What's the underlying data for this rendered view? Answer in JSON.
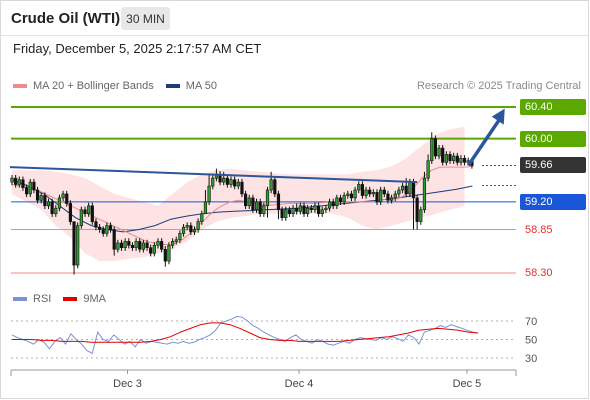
{
  "header": {
    "title": "Crude Oil (WTI)",
    "timeframe": "30 MIN",
    "datetime": "Friday, December 5, 2025 2:17:57 AM CET",
    "credit": "Research © 2025 Trading Central"
  },
  "legend": {
    "ma20": "MA 20 + Bollinger Bands",
    "ma50": "MA 50",
    "rsi": "RSI",
    "rsi_ma": "9MA"
  },
  "colors": {
    "resistance": "#5aa800",
    "support": "#1a56d8",
    "weak_support": "#f08a8a",
    "trendline": "#2b5699",
    "ma20": "#f08a8a",
    "ma50": "#1b3d7a",
    "band_fill": "#fde3e3",
    "rsi": "#7b93d6",
    "rsi_ma": "#e00000",
    "current_price": "#333333"
  },
  "chart_data": {
    "type": "candlestick",
    "price_axis": {
      "min": 58.2,
      "max": 60.5
    },
    "x_ticks": [
      {
        "label": "Dec 3",
        "index": 30
      },
      {
        "label": "Dec 4",
        "index": 77
      },
      {
        "label": "Dec 5",
        "index": 123
      }
    ],
    "levels": [
      {
        "label": "60.40",
        "value": 60.4,
        "role": "resistance"
      },
      {
        "label": "60.00",
        "value": 60.0,
        "role": "resistance"
      },
      {
        "label": "59.66",
        "value": 59.66,
        "role": "current"
      },
      {
        "label": "59.20",
        "value": 59.2,
        "role": "support"
      },
      {
        "label": "58.85",
        "value": 58.85,
        "role": "weak_support"
      },
      {
        "label": "58.30",
        "value": 58.3,
        "role": "weak_support"
      }
    ],
    "trendline": {
      "from": {
        "index": 0,
        "value": 59.64
      },
      "to": {
        "index": 111,
        "value": 59.45
      }
    },
    "forecast_arrow": {
      "from": {
        "index": 125,
        "value": 59.66
      },
      "to": {
        "index": 135,
        "value": 60.38
      }
    },
    "candles": {
      "start_open": 59.45,
      "closes": [
        59.5,
        59.42,
        59.48,
        59.38,
        59.3,
        59.45,
        59.35,
        59.22,
        59.28,
        59.15,
        59.2,
        59.05,
        59.12,
        59.25,
        59.3,
        59.18,
        58.95,
        58.4,
        58.9,
        59.1,
        59.05,
        59.15,
        58.95,
        58.88,
        58.85,
        58.8,
        58.9,
        58.85,
        58.6,
        58.68,
        58.62,
        58.7,
        58.65,
        58.62,
        58.7,
        58.6,
        58.68,
        58.62,
        58.55,
        58.65,
        58.7,
        58.6,
        58.45,
        58.65,
        58.7,
        58.72,
        58.8,
        58.88,
        58.9,
        58.82,
        58.85,
        58.95,
        59.05,
        59.2,
        59.4,
        59.5,
        59.55,
        59.45,
        59.5,
        59.42,
        59.48,
        59.4,
        59.45,
        59.3,
        59.15,
        59.25,
        59.1,
        59.2,
        59.05,
        59.15,
        59.35,
        59.48,
        59.3,
        59.1,
        59.0,
        59.1,
        59.05,
        59.12,
        59.08,
        59.15,
        59.05,
        59.12,
        59.1,
        59.15,
        59.05,
        59.1,
        59.12,
        59.2,
        59.15,
        59.25,
        59.2,
        59.28,
        59.3,
        59.25,
        59.35,
        59.42,
        59.28,
        59.35,
        59.3,
        59.32,
        59.2,
        59.35,
        59.3,
        59.22,
        59.25,
        59.3,
        59.35,
        59.4,
        59.3,
        59.45,
        59.25,
        58.95,
        59.1,
        59.5,
        59.72,
        60.0,
        59.78,
        59.88,
        59.7,
        59.8,
        59.72,
        59.78,
        59.7,
        59.75,
        59.7,
        59.72,
        59.66
      ],
      "highs": {
        "17": 58.9,
        "53": 59.35,
        "54": 59.55,
        "56": 59.62,
        "58": 59.58,
        "71": 59.58,
        "78": 59.18,
        "108": 59.5,
        "113": 59.58,
        "114": 59.8,
        "115": 60.08,
        "117": 59.92
      },
      "lows": {
        "17": 58.28,
        "28": 58.52,
        "42": 58.38,
        "53": 59.1,
        "70": 59.0,
        "73": 58.98,
        "110": 58.85,
        "111": 58.85
      }
    },
    "ma20_values": [
      59.42,
      59.4,
      59.38,
      59.35,
      59.3,
      59.25,
      59.2,
      59.15,
      59.1,
      59.05,
      59.0,
      58.95,
      58.9,
      58.85,
      58.8,
      58.75,
      58.7,
      58.68,
      58.66,
      58.66,
      58.7,
      58.78,
      58.88,
      58.98,
      59.08,
      59.15,
      59.2,
      59.22,
      59.2,
      59.18,
      59.16,
      59.16,
      59.17,
      59.18,
      59.18,
      59.18,
      59.18,
      59.19,
      59.2,
      59.2,
      59.2,
      59.2,
      59.2,
      59.2,
      59.22,
      59.25,
      59.24,
      59.3,
      59.4,
      59.52,
      59.6,
      59.64,
      59.64,
      59.64,
      59.64,
      59.65
    ],
    "ma20_index_step": 2.3,
    "ma50_values": [
      59.48,
      59.4,
      59.3,
      59.15,
      59.0,
      58.9,
      58.85,
      58.82,
      58.85,
      58.9,
      58.98,
      59.02,
      59.05,
      59.07,
      59.08,
      59.09,
      59.1,
      59.11,
      59.12,
      59.14,
      59.16,
      59.18,
      59.2,
      59.22,
      59.24,
      59.27,
      59.3,
      59.33,
      59.36,
      59.4
    ],
    "ma50_index_step": 4.35,
    "band_upper": [
      59.6,
      59.6,
      59.6,
      59.58,
      59.55,
      59.5,
      59.4,
      59.3,
      59.25,
      59.2,
      59.15,
      59.3,
      59.45,
      59.55,
      59.6,
      59.62,
      59.6,
      59.58,
      59.56,
      59.55,
      59.55,
      59.55,
      59.55,
      59.55,
      59.58,
      59.6,
      59.65,
      59.75,
      59.9,
      60.05,
      60.12,
      60.15
    ],
    "band_lower": [
      59.3,
      59.2,
      59.1,
      58.9,
      58.75,
      58.55,
      58.45,
      58.45,
      58.48,
      58.5,
      58.55,
      58.6,
      58.7,
      58.85,
      58.95,
      59.0,
      59.02,
      59.05,
      59.05,
      59.05,
      59.05,
      59.05,
      59.05,
      59.0,
      58.9,
      58.85,
      58.9,
      58.95,
      59.0,
      59.05,
      59.1,
      59.15
    ],
    "band_index_step": 4.0,
    "rsi": {
      "axis": {
        "min": 20,
        "max": 80,
        "ticks": [
          70,
          50,
          30
        ]
      },
      "values": [
        55,
        52,
        50,
        48,
        45,
        50,
        47,
        40,
        48,
        52,
        45,
        56,
        50,
        45,
        38,
        35,
        58,
        50,
        48,
        55,
        50,
        45,
        48,
        42,
        50,
        46,
        48,
        47,
        46,
        45,
        47,
        46,
        48,
        46,
        47,
        50,
        52,
        55,
        60,
        68,
        70,
        72,
        75,
        74,
        70,
        65,
        62,
        58,
        55,
        52,
        50,
        48,
        52,
        55,
        50,
        48,
        46,
        50,
        48,
        45,
        44,
        46,
        48,
        46,
        50,
        52,
        51,
        50,
        49,
        52,
        50,
        53,
        51,
        48,
        55,
        52,
        45,
        58,
        60,
        62,
        65,
        63,
        66,
        64,
        62,
        60,
        58,
        57
      ],
      "ma_values": [
        50,
        50,
        50,
        49,
        49,
        48,
        48,
        48,
        47,
        47,
        47,
        47,
        47,
        47,
        48,
        50,
        53,
        58,
        62,
        66,
        68,
        68,
        66,
        62,
        57,
        52,
        50,
        49,
        49,
        48,
        48,
        48,
        48,
        48,
        49,
        50,
        51,
        52,
        53,
        55,
        57,
        60,
        61,
        62,
        61,
        60,
        58,
        57
      ]
    }
  }
}
